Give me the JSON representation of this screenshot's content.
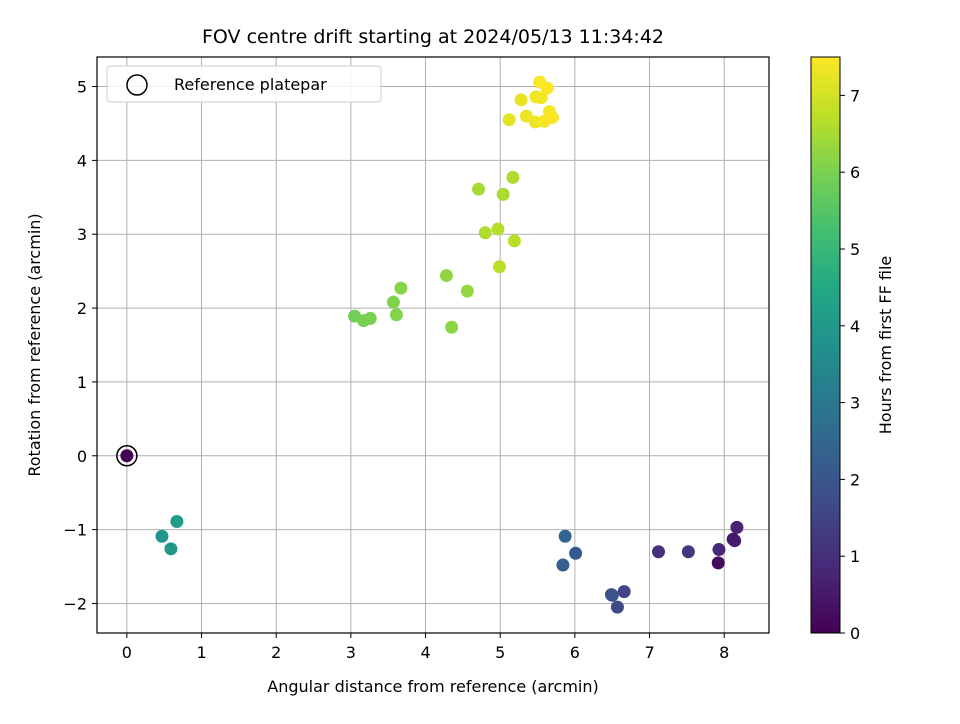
{
  "chart_data": {
    "type": "scatter",
    "title": "FOV centre drift starting at 2024/05/13 11:34:42",
    "xlabel": "Angular distance from reference (arcmin)",
    "ylabel": "Rotation from reference (arcmin)",
    "xlim": [
      -0.4,
      8.6
    ],
    "ylim": [
      -2.4,
      5.4
    ],
    "xticks": [
      0,
      1,
      2,
      3,
      4,
      5,
      6,
      7,
      8
    ],
    "yticks": [
      -2,
      -1,
      0,
      1,
      2,
      3,
      4,
      5
    ],
    "grid": true,
    "legend": {
      "position": "top-left",
      "entries": [
        "Reference platepar"
      ]
    },
    "colormap": "viridis",
    "colorbar": {
      "label": "Hours from first FF file",
      "range": [
        0,
        7.5
      ],
      "ticks": [
        0,
        1,
        2,
        3,
        4,
        5,
        6,
        7
      ]
    },
    "reference_point": {
      "x": 0,
      "y": 0,
      "c": 0
    },
    "points": [
      {
        "x": 0.0,
        "y": 0.0,
        "c": 0.0
      },
      {
        "x": 7.92,
        "y": -1.45,
        "c": 0.2
      },
      {
        "x": 8.12,
        "y": -1.13,
        "c": 0.4
      },
      {
        "x": 8.14,
        "y": -1.15,
        "c": 0.55
      },
      {
        "x": 8.17,
        "y": -0.97,
        "c": 0.7
      },
      {
        "x": 7.93,
        "y": -1.27,
        "c": 0.85
      },
      {
        "x": 7.12,
        "y": -1.3,
        "c": 1.0
      },
      {
        "x": 7.52,
        "y": -1.3,
        "c": 1.2
      },
      {
        "x": 6.66,
        "y": -1.84,
        "c": 1.5
      },
      {
        "x": 6.57,
        "y": -2.05,
        "c": 1.65
      },
      {
        "x": 6.49,
        "y": -1.88,
        "c": 1.8
      },
      {
        "x": 6.5,
        "y": -1.89,
        "c": 1.9
      },
      {
        "x": 6.01,
        "y": -1.32,
        "c": 2.1
      },
      {
        "x": 5.84,
        "y": -1.48,
        "c": 2.25
      },
      {
        "x": 5.87,
        "y": -1.09,
        "c": 2.4
      },
      {
        "x": 0.47,
        "y": -1.09,
        "c": 3.9
      },
      {
        "x": 0.59,
        "y": -1.26,
        "c": 4.0
      },
      {
        "x": 0.67,
        "y": -0.89,
        "c": 4.1
      },
      {
        "x": 3.05,
        "y": 1.89,
        "c": 5.9
      },
      {
        "x": 3.17,
        "y": 1.83,
        "c": 5.95
      },
      {
        "x": 3.26,
        "y": 1.86,
        "c": 6.0
      },
      {
        "x": 3.57,
        "y": 2.08,
        "c": 6.05
      },
      {
        "x": 3.61,
        "y": 1.91,
        "c": 6.1
      },
      {
        "x": 3.67,
        "y": 2.27,
        "c": 6.15
      },
      {
        "x": 4.35,
        "y": 1.74,
        "c": 6.2
      },
      {
        "x": 4.28,
        "y": 2.44,
        "c": 6.25
      },
      {
        "x": 4.56,
        "y": 2.23,
        "c": 6.3
      },
      {
        "x": 4.71,
        "y": 3.61,
        "c": 6.5
      },
      {
        "x": 5.04,
        "y": 3.54,
        "c": 6.55
      },
      {
        "x": 5.17,
        "y": 3.77,
        "c": 6.6
      },
      {
        "x": 4.8,
        "y": 3.02,
        "c": 6.6
      },
      {
        "x": 4.97,
        "y": 3.07,
        "c": 6.65
      },
      {
        "x": 4.99,
        "y": 2.56,
        "c": 6.7
      },
      {
        "x": 5.19,
        "y": 2.91,
        "c": 6.7
      },
      {
        "x": 5.12,
        "y": 4.55,
        "c": 7.2
      },
      {
        "x": 5.28,
        "y": 4.82,
        "c": 7.25
      },
      {
        "x": 5.35,
        "y": 4.6,
        "c": 7.3
      },
      {
        "x": 5.47,
        "y": 4.52,
        "c": 7.32
      },
      {
        "x": 5.48,
        "y": 4.86,
        "c": 7.35
      },
      {
        "x": 5.55,
        "y": 4.85,
        "c": 7.38
      },
      {
        "x": 5.59,
        "y": 4.53,
        "c": 7.4
      },
      {
        "x": 5.66,
        "y": 4.66,
        "c": 7.42
      },
      {
        "x": 5.7,
        "y": 4.58,
        "c": 7.45
      },
      {
        "x": 5.53,
        "y": 5.06,
        "c": 7.47
      },
      {
        "x": 5.63,
        "y": 4.98,
        "c": 7.5
      }
    ]
  }
}
